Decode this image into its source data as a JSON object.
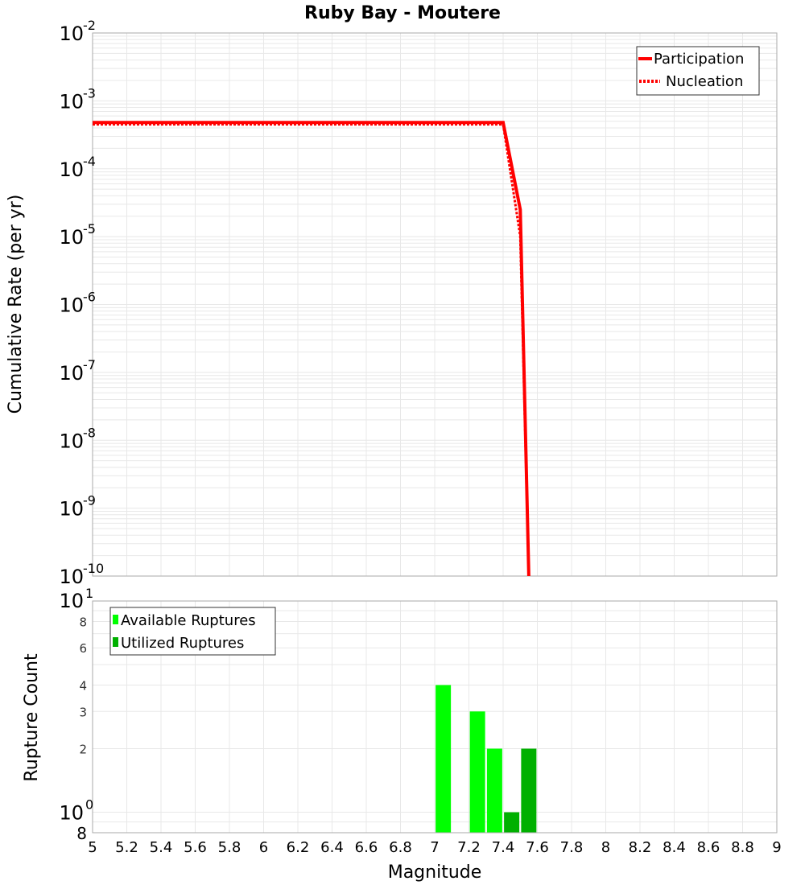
{
  "chart_data": [
    {
      "type": "line",
      "title": "Ruby Bay - Moutere",
      "xlabel": "Magnitude",
      "ylabel": "Cumulative Rate (per yr)",
      "yscale": "log",
      "xlim": [
        5,
        9
      ],
      "ylim": [
        1e-10,
        0.01
      ],
      "ytick_exponents": [
        -2,
        -3,
        -4,
        -5,
        -6,
        -7,
        -8,
        -9,
        -10
      ],
      "grid": true,
      "legend_position": "upper right",
      "series": [
        {
          "name": "Participation",
          "style": "solid",
          "color": "#ff0000",
          "x": [
            5.0,
            7.4,
            7.5,
            7.55
          ],
          "y": [
            0.00048,
            0.00048,
            2.5e-05,
            1e-10
          ]
        },
        {
          "name": "Nucleation",
          "style": "dotted",
          "color": "#ff0000",
          "x": [
            5.0,
            7.4,
            7.5,
            7.55
          ],
          "y": [
            0.00045,
            0.00045,
            1e-05,
            1e-10
          ]
        }
      ]
    },
    {
      "type": "bar",
      "xlabel": "Magnitude",
      "ylabel": "Rupture Count",
      "yscale": "log",
      "xlim": [
        5,
        9
      ],
      "ylim": [
        0.8,
        10
      ],
      "xticks": [
        "5",
        "5.2",
        "5.4",
        "5.6",
        "5.8",
        "6",
        "6.2",
        "6.4",
        "6.6",
        "6.8",
        "7",
        "7.2",
        "7.4",
        "7.6",
        "7.8",
        "8",
        "8.2",
        "8.4",
        "8.6",
        "8.8",
        "9"
      ],
      "yticks": [
        "8",
        "10^0",
        "2",
        "3",
        "4",
        "6",
        "8",
        "10^1"
      ],
      "grid": true,
      "legend_position": "upper left",
      "series": [
        {
          "name": "Available Ruptures",
          "color": "#00ff00",
          "x": [
            7.05,
            7.25,
            7.35
          ],
          "values": [
            4,
            3,
            2
          ]
        },
        {
          "name": "Utilized Ruptures",
          "color": "#00b000",
          "x": [
            7.45,
            7.55
          ],
          "values": [
            1,
            2
          ]
        }
      ]
    }
  ],
  "labels": {
    "title": "Ruby Bay - Moutere",
    "top_ylabel": "Cumulative Rate (per yr)",
    "bottom_ylabel": "Rupture Count",
    "xlabel": "Magnitude",
    "legend_top": [
      "Participation",
      "Nucleation"
    ],
    "legend_bottom": [
      "Available Ruptures",
      "Utilized Ruptures"
    ],
    "x_ticks": [
      "5",
      "5.2",
      "5.4",
      "5.6",
      "5.8",
      "6",
      "6.2",
      "6.4",
      "6.6",
      "6.8",
      "7",
      "7.2",
      "7.4",
      "7.6",
      "7.8",
      "8",
      "8.2",
      "8.4",
      "8.6",
      "8.8",
      "9"
    ],
    "top_y_base": "10",
    "top_y_exps": [
      "-2",
      "-3",
      "-4",
      "-5",
      "-6",
      "-7",
      "-8",
      "-9",
      "-10"
    ],
    "bottom_y_small": [
      "8",
      "6",
      "4",
      "3",
      "2"
    ],
    "bottom_y_big": [
      {
        "base": "10",
        "exp": "1"
      },
      {
        "base": "10",
        "exp": "0"
      }
    ],
    "bottom_y_low": "8"
  },
  "colors": {
    "line": "#ff0000",
    "available": "#00ff00",
    "utilized": "#00b000",
    "grid": "#e8e8e8",
    "axis": "#aaaaaa"
  }
}
